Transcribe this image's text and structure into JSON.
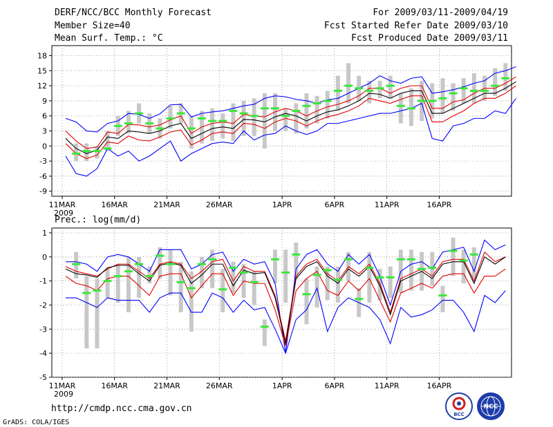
{
  "header": {
    "title": "DERF/NCC/BCC Monthly Forecast",
    "member_size": "Member Size=40",
    "variable": "Mean Surf. Temp.: °C",
    "period": "For 2009/03/11-2009/04/19",
    "started": "Fcst Started Refer Date 2009/03/10",
    "produced": "Fcst Produced Date 2009/03/11"
  },
  "footer": {
    "url": "http://cmdp.ncc.cma.gov.cn",
    "credit": "GrADS: COLA/IGES",
    "logo_left": "BCC",
    "logo_right": "NCC"
  },
  "colors": {
    "ensemble_mean": "#000000",
    "ensemble_bounds": "#0000ff",
    "inner_bounds": "#e00000",
    "member_spread": "#c8c8c8",
    "climatology_mark": "#39e839"
  },
  "chart_data": [
    {
      "type": "line",
      "title": "Mean Surf. Temp.: °C",
      "x_ticks": [
        "11MAR",
        "16MAR",
        "21MAR",
        "26MAR",
        "1APR",
        "6APR",
        "11APR",
        "16APR"
      ],
      "x_year": "2009",
      "ylim": [
        -10,
        20
      ],
      "yticks": [
        -9,
        -6,
        -3,
        0,
        3,
        6,
        9,
        12,
        15,
        18
      ],
      "grid": true,
      "series": [
        {
          "name": "max",
          "values": [
            5.5,
            4.8,
            3.0,
            2.8,
            4.5,
            5.0,
            6.5,
            6.3,
            5.5,
            6.4,
            8.2,
            8.3,
            5.8,
            6.5,
            6.8,
            7.0,
            7.5,
            8.0,
            8.3,
            9.5,
            10.0,
            9.8,
            9.3,
            9.0,
            8.5,
            9.2,
            9.5,
            10.5,
            11.5,
            12.5,
            14.0,
            13.0,
            12.5,
            13.5,
            13.8,
            10.5,
            10.8,
            11.2,
            11.8,
            12.5,
            13.0,
            14.5,
            15.0,
            15.8
          ]
        },
        {
          "name": "mean_plus",
          "values": [
            3.0,
            1.0,
            -0.5,
            -0.2,
            2.8,
            2.5,
            4.3,
            4.2,
            3.8,
            4.2,
            5.2,
            6.0,
            2.5,
            3.8,
            4.5,
            4.8,
            4.5,
            6.3,
            6.0,
            5.8,
            6.8,
            7.5,
            7.0,
            6.0,
            7.0,
            7.8,
            8.3,
            9.0,
            10.0,
            11.5,
            11.5,
            10.5,
            11.5,
            12.0,
            12.0,
            7.5,
            7.5,
            8.8,
            9.2,
            10.5,
            11.5,
            11.5,
            12.5,
            13.8
          ]
        },
        {
          "name": "mean",
          "values": [
            1.5,
            -0.5,
            -1.5,
            -0.8,
            1.8,
            1.5,
            3.0,
            2.8,
            2.5,
            3.0,
            4.0,
            4.5,
            1.5,
            2.5,
            3.5,
            3.8,
            3.5,
            5.3,
            5.2,
            4.8,
            5.8,
            6.5,
            6.0,
            5.0,
            6.0,
            6.8,
            7.2,
            8.0,
            9.0,
            10.5,
            10.3,
            9.5,
            10.5,
            11.0,
            11.0,
            6.5,
            6.5,
            7.5,
            8.5,
            9.5,
            10.5,
            10.5,
            11.5,
            12.8
          ]
        },
        {
          "name": "mean_minus",
          "values": [
            0.5,
            -1.5,
            -2.5,
            -1.8,
            0.8,
            0.5,
            2.0,
            1.2,
            1.0,
            1.8,
            2.8,
            3.2,
            0.2,
            1.2,
            2.5,
            2.8,
            2.5,
            4.5,
            4.3,
            3.5,
            4.8,
            5.5,
            5.0,
            4.0,
            5.0,
            5.8,
            6.3,
            7.0,
            8.0,
            9.5,
            9.0,
            8.5,
            9.3,
            10.0,
            10.0,
            4.8,
            4.8,
            6.0,
            7.0,
            8.5,
            9.5,
            9.5,
            10.5,
            12.0
          ]
        },
        {
          "name": "min",
          "values": [
            -2.0,
            -5.5,
            -6.0,
            -4.5,
            -0.5,
            -2.0,
            -1.0,
            -3.0,
            -2.0,
            -0.5,
            1.0,
            -3.0,
            -1.5,
            -0.5,
            0.5,
            0.8,
            0.5,
            3.0,
            1.2,
            2.2,
            2.5,
            4.0,
            3.0,
            2.3,
            3.0,
            4.5,
            4.5,
            5.0,
            5.5,
            6.0,
            6.5,
            6.5,
            7.0,
            7.5,
            8.5,
            1.5,
            1.0,
            4.0,
            4.5,
            5.5,
            5.5,
            7.0,
            6.5,
            9.5
          ]
        },
        {
          "name": "climatology",
          "values": [
            -1.5,
            -1.0,
            -1.0,
            -0.5,
            4.0,
            4.5,
            6.5,
            4.5,
            3.5,
            5.5,
            6.5,
            3.5,
            5.5,
            5.0,
            5.0,
            7.0,
            6.5,
            6.0,
            7.5,
            7.5,
            6.0,
            7.0,
            8.0,
            8.5,
            9.0,
            11.0,
            12.0,
            11.5,
            11.0,
            11.5,
            12.0,
            8.0,
            7.5,
            9.0,
            9.0,
            9.5,
            10.5,
            11.5,
            11.0,
            11.0,
            12.0,
            13.5
          ]
        },
        {
          "name": "spread_low",
          "values": [
            -3.0,
            -3.0,
            -2.5,
            -1.0,
            2.0,
            2.5,
            4.5,
            2.5,
            1.5,
            3.5,
            4.5,
            -0.5,
            0.5,
            1.0,
            1.5,
            1.0,
            2.0,
            2.0,
            -0.5,
            3.0,
            3.0,
            2.5,
            3.5,
            4.5,
            5.5,
            7.0,
            8.5,
            9.0,
            8.5,
            9.5,
            9.5,
            4.5,
            4.0,
            5.0,
            5.5,
            6.5,
            7.0,
            8.5,
            8.5,
            9.0,
            10.0,
            11.0
          ]
        },
        {
          "name": "spread_high",
          "values": [
            0.5,
            0.5,
            0.0,
            3.0,
            6.0,
            7.0,
            8.5,
            6.5,
            5.5,
            8.0,
            8.5,
            6.0,
            7.0,
            7.5,
            6.5,
            8.5,
            9.0,
            9.5,
            10.5,
            10.5,
            7.5,
            8.5,
            10.5,
            10.0,
            11.0,
            14.0,
            16.5,
            14.0,
            13.0,
            13.0,
            14.0,
            10.5,
            11.5,
            13.0,
            12.5,
            13.5,
            12.5,
            13.5,
            14.5,
            14.0,
            15.5,
            16.5
          ]
        }
      ]
    },
    {
      "type": "line",
      "title": "Prec.: log(mm/d)",
      "x_ticks": [
        "11MAR",
        "16MAR",
        "21MAR",
        "26MAR",
        "1APR",
        "6APR",
        "11APR",
        "16APR"
      ],
      "x_year": "2009",
      "ylim": [
        -5,
        1.2
      ],
      "yticks": [
        -5,
        -4,
        -3,
        -2,
        -1,
        0,
        1
      ],
      "grid": true,
      "series": [
        {
          "name": "max",
          "values": [
            -0.2,
            -0.2,
            -0.3,
            -0.6,
            0.0,
            0.1,
            0.0,
            -0.3,
            -0.6,
            0.3,
            0.3,
            0.3,
            -0.5,
            -0.3,
            0.1,
            0.2,
            -0.6,
            -0.1,
            -0.3,
            -0.2,
            -1.1,
            -4.0,
            -0.5,
            0.1,
            0.3,
            -0.3,
            -0.6,
            0.1,
            -0.3,
            0.1,
            -0.8,
            -2.0,
            -0.6,
            -0.3,
            -0.2,
            -0.5,
            0.2,
            0.3,
            0.4,
            -0.6,
            0.7,
            0.3,
            0.5
          ]
        },
        {
          "name": "mean_plus",
          "values": [
            -0.4,
            -0.6,
            -0.7,
            -0.8,
            -0.5,
            -0.3,
            -0.3,
            -0.6,
            -0.9,
            -0.3,
            -0.2,
            -0.3,
            -0.9,
            -0.6,
            -0.2,
            -0.1,
            -1.0,
            -0.4,
            -0.6,
            -0.6,
            -1.6,
            -3.5,
            -0.8,
            -0.3,
            -0.1,
            -0.7,
            -1.0,
            -0.4,
            -0.7,
            -0.3,
            -1.1,
            -2.3,
            -0.9,
            -0.7,
            -0.5,
            -0.8,
            -0.2,
            -0.1,
            -0.1,
            -1.0,
            0.2,
            -0.2,
            0.0
          ]
        },
        {
          "name": "mean",
          "values": [
            -0.5,
            -0.7,
            -0.75,
            -0.85,
            -0.45,
            -0.35,
            -0.35,
            -0.7,
            -1.0,
            -0.35,
            -0.25,
            -0.35,
            -1.1,
            -0.75,
            -0.3,
            -0.3,
            -1.2,
            -0.55,
            -0.7,
            -0.65,
            -1.7,
            -3.6,
            -0.9,
            -0.4,
            -0.2,
            -0.8,
            -1.1,
            -0.5,
            -0.8,
            -0.4,
            -1.2,
            -2.4,
            -1.0,
            -0.8,
            -0.6,
            -0.9,
            -0.3,
            -0.2,
            -0.2,
            -1.1,
            0.0,
            -0.3,
            0.0
          ]
        },
        {
          "name": "mean_minus",
          "values": [
            -0.8,
            -1.1,
            -1.2,
            -1.4,
            -0.9,
            -0.8,
            -0.8,
            -1.2,
            -1.6,
            -0.8,
            -0.7,
            -0.7,
            -1.7,
            -1.2,
            -0.7,
            -0.7,
            -1.6,
            -1.0,
            -1.1,
            -1.1,
            -2.2,
            -3.7,
            -1.4,
            -0.9,
            -0.6,
            -1.4,
            -1.6,
            -1.0,
            -1.4,
            -0.9,
            -1.8,
            -2.7,
            -1.5,
            -1.3,
            -1.1,
            -1.3,
            -0.8,
            -0.7,
            -0.7,
            -1.5,
            -0.8,
            -0.8,
            -0.5
          ]
        },
        {
          "name": "min",
          "values": [
            -1.7,
            -1.7,
            -1.9,
            -2.1,
            -1.7,
            -1.8,
            -1.8,
            -1.8,
            -2.3,
            -1.7,
            -1.5,
            -1.5,
            -2.3,
            -2.3,
            -1.5,
            -1.7,
            -2.3,
            -1.8,
            -2.2,
            -2.1,
            -3.0,
            -4.0,
            -2.6,
            -2.2,
            -1.3,
            -3.1,
            -2.1,
            -1.7,
            -1.9,
            -2.1,
            -2.6,
            -3.6,
            -2.1,
            -2.5,
            -2.4,
            -2.2,
            -1.8,
            -1.8,
            -2.3,
            -3.1,
            -1.6,
            -1.9,
            -1.4
          ]
        },
        {
          "name": "climatology",
          "values": [
            -0.3,
            -1.5,
            -1.4,
            -1.0,
            -0.8,
            -0.6,
            -0.3,
            -0.8,
            0.05,
            -0.3,
            -1.05,
            -1.3,
            -0.3,
            -0.1,
            -1.35,
            -0.45,
            -0.65,
            -1.05,
            -2.9,
            -0.1,
            -0.65,
            0.1,
            -1.55,
            -0.75,
            -0.55,
            -0.95,
            -0.1,
            -1.75,
            -0.45,
            -0.85,
            -0.85,
            -0.1,
            -0.1,
            -0.5,
            -0.45,
            -1.6,
            0.25,
            -0.15,
            0.1
          ]
        },
        {
          "name": "spread_low",
          "values": [
            -0.9,
            -3.8,
            -3.8,
            -1.7,
            -1.9,
            -2.3,
            -1.7,
            -1.1,
            -0.9,
            -1.6,
            -2.3,
            -3.1,
            -1.3,
            -1.3,
            -2.3,
            -1.5,
            -1.7,
            -2.0,
            -3.7,
            -1.1,
            -1.9,
            -0.9,
            -2.8,
            -2.1,
            -1.8,
            -1.9,
            -1.0,
            -2.5,
            -1.9,
            -1.8,
            -1.7,
            -1.5,
            -1.4,
            -1.4,
            -1.2,
            -2.3,
            -0.8,
            -1.1,
            -0.9
          ]
        },
        {
          "name": "spread_high",
          "values": [
            0.2,
            -0.8,
            -0.9,
            -0.5,
            -0.3,
            0.0,
            0.0,
            -0.4,
            0.4,
            0.3,
            -0.2,
            -0.6,
            0.0,
            0.3,
            -0.5,
            -0.2,
            -0.3,
            -0.6,
            -2.6,
            0.3,
            0.3,
            0.6,
            -0.9,
            -0.4,
            -0.4,
            -0.4,
            0.2,
            -1.3,
            0.2,
            -0.5,
            -0.4,
            0.3,
            0.3,
            0.2,
            0.2,
            -1.2,
            0.8,
            0.3,
            0.4
          ]
        }
      ]
    }
  ]
}
